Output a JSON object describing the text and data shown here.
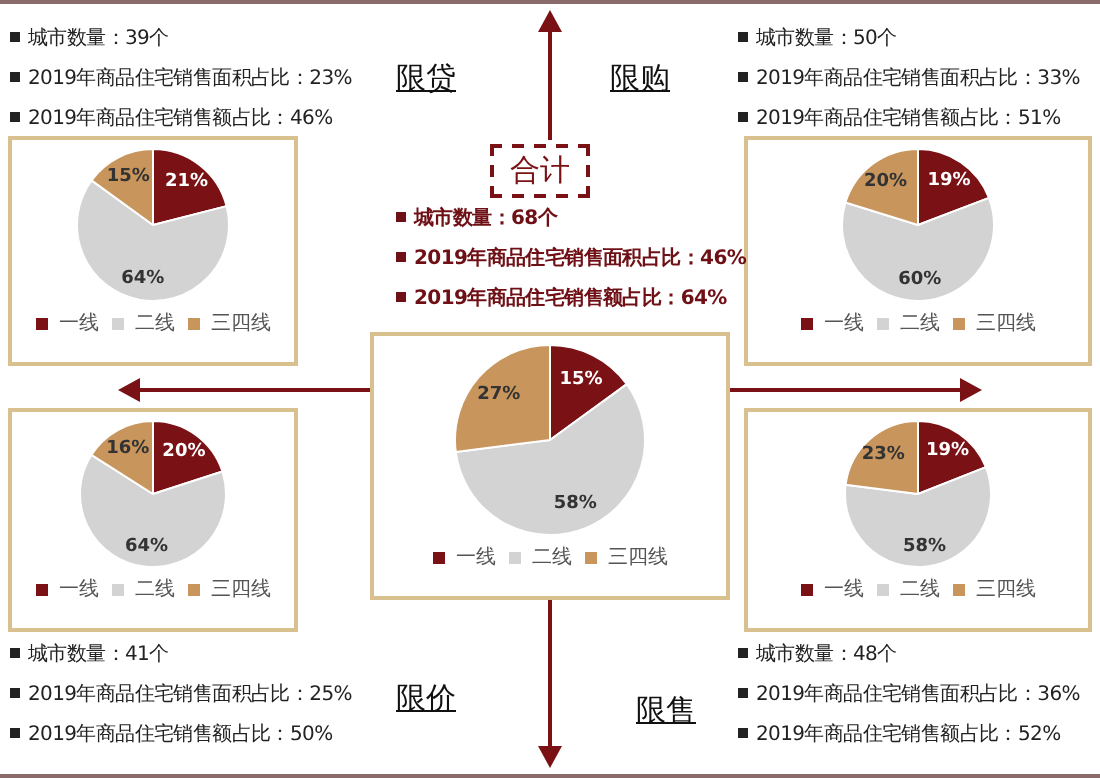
{
  "chart_data": [
    {
      "type": "pie",
      "title": "限贷",
      "categories": [
        "一线",
        "二线",
        "三四线"
      ],
      "values": [
        21,
        64,
        15
      ],
      "colors": [
        "#7a1114",
        "#d3d3d3",
        "#c8955c"
      ],
      "value_labels": [
        "21%",
        "64%",
        "15%"
      ],
      "legend": "bottom",
      "annotations": [
        "城市数量：39个",
        "2019年商品住宅销售面积占比：23%",
        "2019年商品住宅销售额占比：46%"
      ]
    },
    {
      "type": "pie",
      "title": "限购",
      "categories": [
        "一线",
        "二线",
        "三四线"
      ],
      "values": [
        19,
        60,
        20
      ],
      "colors": [
        "#7a1114",
        "#d3d3d3",
        "#c8955c"
      ],
      "value_labels": [
        "19%",
        "60%",
        "20%"
      ],
      "legend": "bottom",
      "annotations": [
        "城市数量：50个",
        "2019年商品住宅销售面积占比：33%",
        "2019年商品住宅销售额占比：51%"
      ]
    },
    {
      "type": "pie",
      "title": "合计",
      "categories": [
        "一线",
        "二线",
        "三四线"
      ],
      "values": [
        15,
        58,
        27
      ],
      "colors": [
        "#7a1114",
        "#d3d3d3",
        "#c8955c"
      ],
      "value_labels": [
        "15%",
        "58%",
        "27%"
      ],
      "legend": "bottom",
      "annotations": [
        "城市数量：68个",
        "2019年商品住宅销售面积占比：46%",
        "2019年商品住宅销售额占比：64%"
      ]
    },
    {
      "type": "pie",
      "title": "限价",
      "categories": [
        "一线",
        "二线",
        "三四线"
      ],
      "values": [
        20,
        64,
        16
      ],
      "colors": [
        "#7a1114",
        "#d3d3d3",
        "#c8955c"
      ],
      "value_labels": [
        "20%",
        "64%",
        "16%"
      ],
      "legend": "bottom",
      "annotations": [
        "城市数量：41个",
        "2019年商品住宅销售面积占比：25%",
        "2019年商品住宅销售额占比：50%"
      ]
    },
    {
      "type": "pie",
      "title": "限售",
      "categories": [
        "一线",
        "二线",
        "三四线"
      ],
      "values": [
        19,
        58,
        23
      ],
      "colors": [
        "#7a1114",
        "#d3d3d3",
        "#c8955c"
      ],
      "value_labels": [
        "19%",
        "58%",
        "23%"
      ],
      "legend": "bottom",
      "annotations": [
        "城市数量：48个",
        "2019年商品住宅销售面积占比：36%",
        "2019年商品住宅销售额占比：52%"
      ]
    }
  ]
}
